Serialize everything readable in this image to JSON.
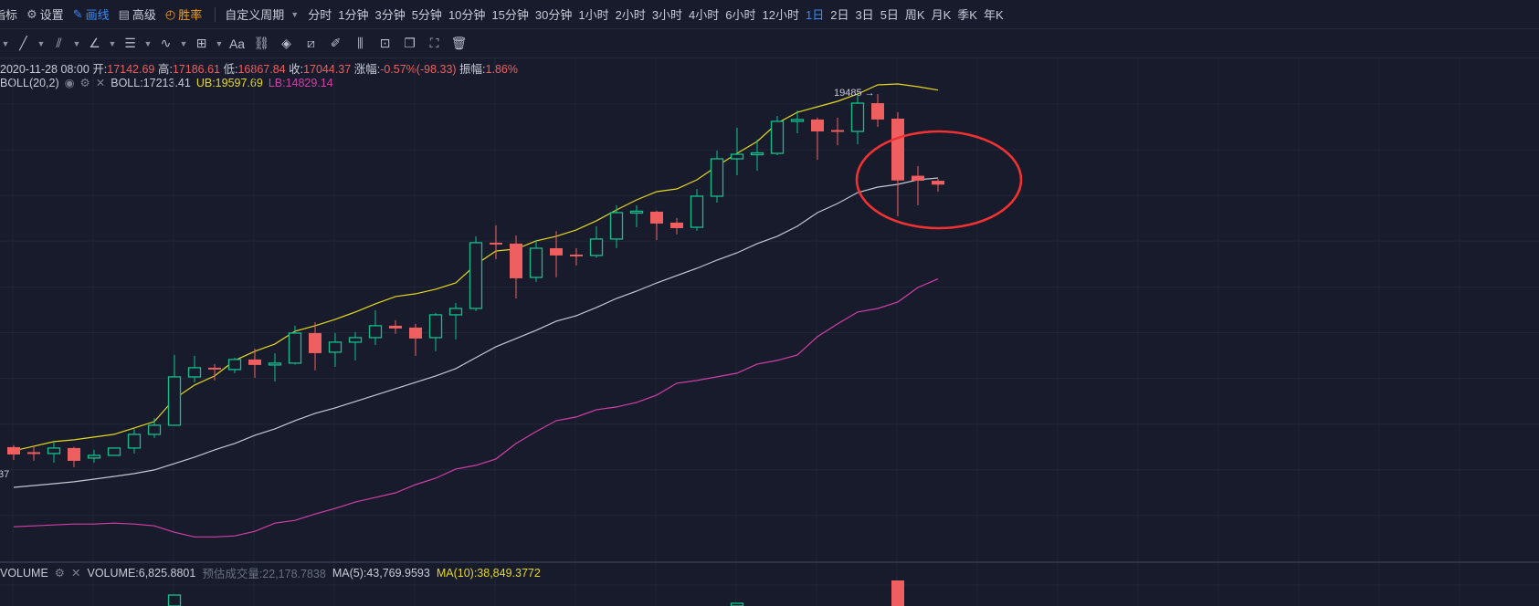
{
  "toolbar": {
    "indicators_label": "指标",
    "settings_label": "设置",
    "draw_label": "画线",
    "advanced_label": "高级",
    "winrate_label": "胜率",
    "custom_period_label": "自定义周期",
    "periods": [
      "分时",
      "1分钟",
      "3分钟",
      "5分钟",
      "10分钟",
      "15分钟",
      "30分钟",
      "1小时",
      "2小时",
      "3小时",
      "4小时",
      "6小时",
      "12小时",
      "1日",
      "2日",
      "3日",
      "5日",
      "周K",
      "月K",
      "季K",
      "年K"
    ],
    "active_period": "1日",
    "draw_accent": "#3d8af7",
    "winrate_accent": "#f0a020"
  },
  "drawing_tools": {
    "text_tool_label": "Aa",
    "icons": [
      "line-icon",
      "ray-icon",
      "parallel-channel-icon",
      "angle-icon",
      "horizontal-lines-icon",
      "wave-icon",
      "measure-box-icon",
      "text-icon",
      "magnet-icon",
      "eraser-icon",
      "ruler-icon",
      "brush-icon",
      "bars-icon",
      "lock-icon",
      "copy-icon",
      "screenshot-icon",
      "trash-icon"
    ]
  },
  "ohlc": {
    "date": "2020-11-28 08:00",
    "open_label": "开:",
    "open": "17142.69",
    "high_label": "高:",
    "high": "17186.61",
    "low_label": "低:",
    "low": "16867.84",
    "close_label": "收:",
    "close": "17044.37",
    "change_label": "涨幅:",
    "change": "-0.57%(-98.33)",
    "amplitude_label": "振幅:",
    "amplitude": "1.86%"
  },
  "boll": {
    "name": "BOLL(20,2)",
    "mid": "BOLL:17213.41",
    "ub": "UB:19597.69",
    "lb": "LB:14829.14"
  },
  "volume": {
    "name": "VOLUME",
    "value": "VOLUME:6,825.8801",
    "estimate": "预估成交量:22,178.7838",
    "ma5": "MA(5):43,769.9593",
    "ma10": "MA(10):38,849.3772",
    "visible_bars": [
      {
        "candle": 8,
        "dir": "up"
      },
      {
        "candle": 36,
        "dir": "up"
      },
      {
        "candle": 44,
        "dir": "down"
      }
    ]
  },
  "chart_data": {
    "type": "candlestick",
    "y_scale": "log",
    "grid": true,
    "colors": {
      "up": "#12c08c",
      "down": "#ef5f5f",
      "ub": "#e6d81e",
      "mb": "#c4c8d4",
      "lb": "#d23fa6",
      "highlight": "#f03232"
    },
    "candles": [
      [
        11568,
        11599,
        11350,
        11443
      ],
      [
        11474,
        11584,
        11336,
        11459
      ],
      [
        11459,
        11662,
        11306,
        11552
      ],
      [
        11552,
        11575,
        11230,
        11336
      ],
      [
        11383,
        11521,
        11306,
        11428
      ],
      [
        11428,
        11560,
        11420,
        11552
      ],
      [
        11552,
        11883,
        11459,
        11788
      ],
      [
        11788,
        12078,
        11725,
        11948
      ],
      [
        11948,
        13255,
        11940,
        12832
      ],
      [
        12832,
        13237,
        12729,
        13007
      ],
      [
        13007,
        13077,
        12764,
        12972
      ],
      [
        12972,
        13202,
        12902,
        13166
      ],
      [
        13166,
        13379,
        12815,
        13060
      ],
      [
        13060,
        13290,
        12746,
        13095
      ],
      [
        13095,
        13839,
        13070,
        13690
      ],
      [
        13690,
        13913,
        12955,
        13290
      ],
      [
        13308,
        13690,
        13025,
        13507
      ],
      [
        13507,
        13709,
        13148,
        13598
      ],
      [
        13598,
        14159,
        13451,
        13839
      ],
      [
        13839,
        13951,
        13672,
        13783
      ],
      [
        13801,
        13876,
        13237,
        13580
      ],
      [
        13598,
        14102,
        13326,
        14064
      ],
      [
        14064,
        14312,
        13562,
        14197
      ],
      [
        14197,
        15793,
        14141,
        15644
      ],
      [
        15644,
        16050,
        15269,
        15603
      ],
      [
        15624,
        15813,
        14409,
        14843
      ],
      [
        14863,
        15708,
        14764,
        15517
      ],
      [
        15517,
        15915,
        14863,
        15352
      ],
      [
        15372,
        15517,
        15127,
        15331
      ],
      [
        15352,
        16027,
        15300,
        15729
      ],
      [
        15729,
        16532,
        15519,
        16355
      ],
      [
        16355,
        16532,
        16005,
        16377
      ],
      [
        16377,
        16400,
        15707,
        16093
      ],
      [
        16115,
        16225,
        15836,
        15984
      ],
      [
        16005,
        16938,
        15920,
        16756
      ],
      [
        16756,
        17923,
        16598,
        17707
      ],
      [
        17707,
        18538,
        17283,
        17827
      ],
      [
        17827,
        18215,
        17399,
        17851
      ],
      [
        17851,
        18866,
        17803,
        18714
      ],
      [
        18714,
        19019,
        18388,
        18765
      ],
      [
        18765,
        18815,
        17683,
        18438
      ],
      [
        18463,
        18815,
        18067,
        18438
      ],
      [
        18438,
        19433,
        18091,
        19224
      ],
      [
        19224,
        19485,
        18563,
        18765
      ],
      [
        18790,
        18968,
        16267,
        17150
      ],
      [
        17270,
        17520,
        16530,
        17143
      ],
      [
        17142.69,
        17186.61,
        16867.84,
        17044.37
      ]
    ],
    "ub": [
      11506,
      11584,
      11662,
      11693,
      11741,
      11788,
      11900,
      12013,
      12425,
      12678,
      12850,
      13148,
      13326,
      13471,
      13727,
      13839,
      13970,
      14121,
      14294,
      14448,
      14507,
      14605,
      14743,
      15146,
      15455,
      15497,
      15686,
      15792,
      15942,
      16158,
      16421,
      16666,
      16870,
      16938,
      17167,
      17518,
      17851,
      18166,
      18663,
      18967,
      19121,
      19277,
      19485,
      19750,
      19777,
      19697,
      19597.69
    ],
    "mb": [
      10901,
      10930,
      10960,
      10990,
      11034,
      11079,
      11125,
      11185,
      11291,
      11398,
      11521,
      11630,
      11772,
      11884,
      12029,
      12160,
      12258,
      12374,
      12492,
      12610,
      12730,
      12850,
      12990,
      13201,
      13417,
      13580,
      13746,
      13932,
      14045,
      14217,
      14409,
      14565,
      14743,
      14903,
      15064,
      15248,
      15413,
      15623,
      15792,
      16028,
      16355,
      16577,
      16847,
      16983,
      17052,
      17166,
      17213.41
    ],
    "lb": [
      10284,
      10298,
      10312,
      10326,
      10326,
      10340,
      10326,
      10298,
      10201,
      10132,
      10132,
      10146,
      10215,
      10340,
      10382,
      10480,
      10566,
      10667,
      10739,
      10813,
      10945,
      11049,
      11200,
      11261,
      11367,
      11630,
      11836,
      12029,
      12094,
      12226,
      12275,
      12358,
      12492,
      12712,
      12764,
      12833,
      12902,
      13077,
      13148,
      13255,
      13617,
      13876,
      14121,
      14197,
      14332,
      14644,
      14829.14
    ],
    "annotations": {
      "high_label": "19485 →",
      "high_candle": 43,
      "left_edge_label": "37",
      "highlight_ellipse_candles": [
        44,
        45,
        46
      ]
    }
  }
}
